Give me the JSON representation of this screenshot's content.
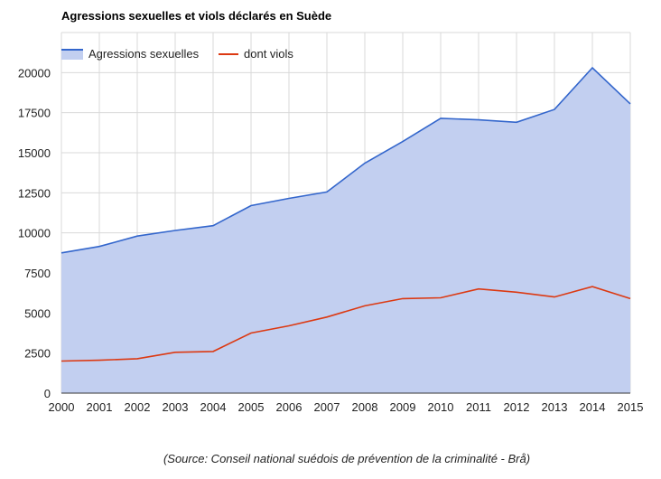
{
  "chart_data": {
    "type": "area",
    "title": "Agressions sexuelles et viols déclarés en Suède",
    "source": "(Source: Conseil national suédois de prévention de la criminalité - Brå)",
    "x": [
      2000,
      2001,
      2002,
      2003,
      2004,
      2005,
      2006,
      2007,
      2008,
      2009,
      2010,
      2011,
      2012,
      2013,
      2014,
      2015
    ],
    "xlim": [
      2000,
      2015
    ],
    "ylim": [
      0,
      22500
    ],
    "yticks": [
      0,
      2500,
      5000,
      7500,
      10000,
      12500,
      15000,
      17500,
      20000
    ],
    "grid": true,
    "legend_position": "top-left",
    "series": [
      {
        "name": "Agressions sexuelles",
        "style": "area",
        "color": "#3366cc",
        "fill": "#c2cff0",
        "values": [
          8750,
          9150,
          9800,
          10150,
          10450,
          11700,
          12150,
          12550,
          14350,
          15700,
          17150,
          17050,
          16900,
          17700,
          20300,
          18050
        ]
      },
      {
        "name": "dont viols",
        "style": "line",
        "color": "#dc3912",
        "values": [
          2000,
          2050,
          2150,
          2550,
          2600,
          3750,
          4200,
          4750,
          5450,
          5900,
          5950,
          6500,
          6300,
          6000,
          6650,
          5900
        ]
      }
    ]
  }
}
